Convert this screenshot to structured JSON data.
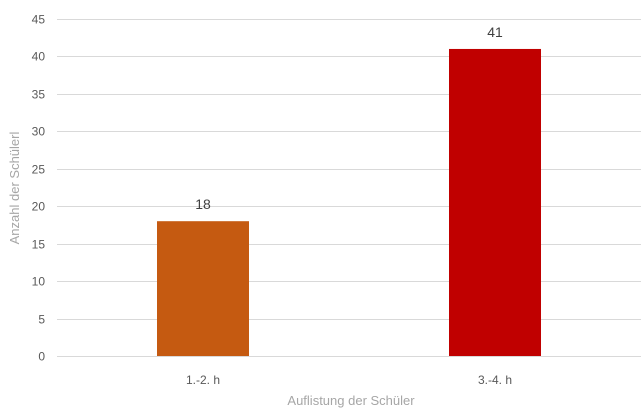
{
  "chart_data": {
    "type": "bar",
    "categories": [
      "1.-2. h",
      "3.-4. h"
    ],
    "values": [
      18,
      41
    ],
    "data_labels": [
      "18",
      "41"
    ],
    "bar_colors": [
      "#c55a11",
      "#c00000"
    ],
    "title": "",
    "xlabel": "Auflistung der Schüler",
    "ylabel": "Anzahl der Schülerl",
    "ylim": [
      0,
      45
    ],
    "yticks": [
      0,
      5,
      10,
      15,
      20,
      25,
      30,
      35,
      40,
      45
    ],
    "ytick_labels": [
      "0",
      "5",
      "10",
      "15",
      "20",
      "25",
      "30",
      "35",
      "40",
      "45"
    ],
    "grid": true,
    "legend": "none"
  }
}
